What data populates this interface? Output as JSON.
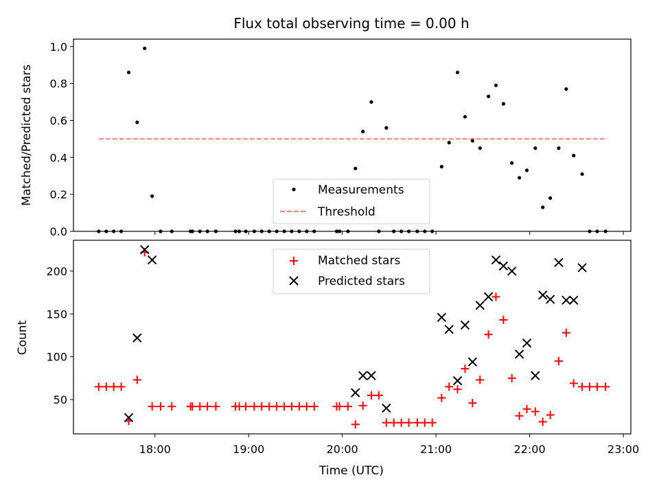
{
  "title": "Flux total observing time = 0.00 h",
  "chart_data": [
    {
      "type": "scatter",
      "ylabel": "Matched/Predicted stars",
      "xlim": [
        17.13,
        23.08
      ],
      "ylim": [
        0,
        1.04
      ],
      "y_ticks": [
        0.0,
        0.2,
        0.4,
        0.6,
        0.8,
        1.0
      ],
      "y_tick_labels": [
        "0.0",
        "0.2",
        "0.4",
        "0.6",
        "0.8",
        "1.0"
      ],
      "legend_position": "lower-center",
      "series": [
        {
          "name": "Measurements",
          "color": "#000000",
          "marker": "dot",
          "x": [
            17.4,
            17.48,
            17.56,
            17.64,
            17.72,
            17.81,
            17.89,
            17.97,
            18.06,
            18.18,
            18.38,
            18.4,
            18.48,
            18.56,
            18.65,
            18.86,
            18.9,
            18.97,
            19.06,
            19.14,
            19.22,
            19.3,
            19.38,
            19.46,
            19.54,
            19.62,
            19.7,
            19.94,
            19.97,
            20.06,
            20.14,
            20.22,
            20.31,
            20.39,
            20.47,
            20.55,
            20.63,
            20.71,
            20.8,
            20.88,
            20.96,
            21.06,
            21.14,
            21.23,
            21.31,
            21.39,
            21.47,
            21.56,
            21.64,
            21.72,
            21.81,
            21.89,
            21.97,
            22.06,
            22.14,
            22.22,
            22.31,
            22.39,
            22.47,
            22.56,
            22.64,
            22.72,
            22.81
          ],
          "y": [
            0.0,
            0.0,
            0.0,
            0.0,
            0.86,
            0.59,
            0.99,
            0.19,
            0.0,
            0.0,
            0.0,
            0.0,
            0.0,
            0.0,
            0.0,
            0.0,
            0.0,
            0.0,
            0.0,
            0.0,
            0.0,
            0.0,
            0.0,
            0.0,
            0.0,
            0.0,
            0.0,
            0.0,
            0.0,
            0.0,
            0.34,
            0.54,
            0.7,
            0.0,
            0.56,
            0.0,
            0.0,
            0.0,
            0.0,
            0.0,
            0.0,
            0.35,
            0.48,
            0.86,
            0.62,
            0.49,
            0.45,
            0.73,
            0.79,
            0.69,
            0.37,
            0.29,
            0.33,
            0.45,
            0.13,
            0.18,
            0.45,
            0.77,
            0.41,
            0.31,
            0.0,
            0.0,
            0.0
          ]
        },
        {
          "name": "Threshold",
          "color": "#ff7f7f",
          "style": "dashed",
          "x": [
            17.4,
            22.81
          ],
          "y": [
            0.5,
            0.5
          ]
        }
      ]
    },
    {
      "type": "scatter",
      "ylabel": "Count",
      "xlabel": "Time (UTC)",
      "xlim": [
        17.13,
        23.08
      ],
      "ylim": [
        10,
        236
      ],
      "x_ticks": [
        18,
        19,
        20,
        21,
        22,
        23
      ],
      "x_tick_labels": [
        "18:00",
        "19:00",
        "20:00",
        "21:00",
        "22:00",
        "23:00"
      ],
      "y_ticks": [
        50,
        100,
        150,
        200
      ],
      "y_tick_labels": [
        "50",
        "100",
        "150",
        "200"
      ],
      "legend_position": "upper-center",
      "series": [
        {
          "name": "Matched stars",
          "color": "#ff0000",
          "marker": "plus",
          "x": [
            17.4,
            17.48,
            17.56,
            17.64,
            17.72,
            17.81,
            17.89,
            17.97,
            18.06,
            18.18,
            18.38,
            18.4,
            18.48,
            18.56,
            18.65,
            18.86,
            18.9,
            18.97,
            19.06,
            19.14,
            19.22,
            19.3,
            19.38,
            19.46,
            19.54,
            19.62,
            19.7,
            19.94,
            19.97,
            20.06,
            20.14,
            20.22,
            20.31,
            20.39,
            20.47,
            20.55,
            20.63,
            20.71,
            20.8,
            20.88,
            20.96,
            21.06,
            21.14,
            21.23,
            21.31,
            21.39,
            21.47,
            21.56,
            21.64,
            21.72,
            21.81,
            21.89,
            21.97,
            22.06,
            22.14,
            22.22,
            22.31,
            22.39,
            22.47,
            22.56,
            22.64,
            22.72,
            22.81
          ],
          "y": [
            65,
            65,
            65,
            65,
            25,
            73,
            222,
            42,
            42,
            42,
            42,
            42,
            42,
            42,
            42,
            42,
            42,
            42,
            42,
            42,
            42,
            42,
            42,
            42,
            42,
            42,
            42,
            42,
            42,
            42,
            21,
            43,
            55,
            55,
            23,
            23,
            23,
            23,
            23,
            23,
            23,
            52,
            65,
            62,
            86,
            46,
            73,
            126,
            170,
            143,
            75,
            31,
            39,
            36,
            24,
            32,
            95,
            128,
            69,
            65,
            65,
            65,
            65
          ]
        },
        {
          "name": "Predicted stars",
          "color": "#000000",
          "marker": "x",
          "x": [
            17.72,
            17.81,
            17.89,
            17.97,
            20.14,
            20.22,
            20.31,
            20.47,
            21.06,
            21.14,
            21.23,
            21.31,
            21.39,
            21.47,
            21.56,
            21.64,
            21.72,
            21.81,
            21.89,
            21.97,
            22.06,
            22.14,
            22.22,
            22.31,
            22.39,
            22.47,
            22.56
          ],
          "y": [
            29,
            122,
            225,
            213,
            58,
            78,
            78,
            40,
            146,
            132,
            72,
            137,
            94,
            160,
            170,
            213,
            206,
            200,
            103,
            116,
            78,
            172,
            167,
            210,
            166,
            166,
            204
          ]
        }
      ]
    }
  ]
}
